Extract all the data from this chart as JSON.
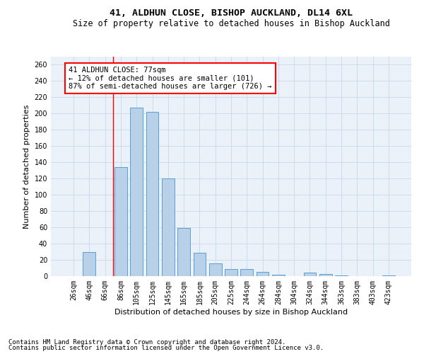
{
  "title1": "41, ALDHUN CLOSE, BISHOP AUCKLAND, DL14 6XL",
  "title2": "Size of property relative to detached houses in Bishop Auckland",
  "xlabel": "Distribution of detached houses by size in Bishop Auckland",
  "ylabel": "Number of detached properties",
  "categories": [
    "26sqm",
    "46sqm",
    "66sqm",
    "86sqm",
    "105sqm",
    "125sqm",
    "145sqm",
    "165sqm",
    "185sqm",
    "205sqm",
    "225sqm",
    "244sqm",
    "264sqm",
    "284sqm",
    "304sqm",
    "324sqm",
    "344sqm",
    "363sqm",
    "383sqm",
    "403sqm",
    "423sqm"
  ],
  "values": [
    0,
    30,
    0,
    134,
    207,
    202,
    120,
    59,
    29,
    16,
    9,
    9,
    5,
    2,
    0,
    4,
    3,
    1,
    0,
    0,
    1
  ],
  "bar_color": "#b8d0e8",
  "bar_edge_color": "#5a9fd4",
  "bar_width": 0.8,
  "vline_x": 2.5,
  "annotation_text": "41 ALDHUN CLOSE: 77sqm\n← 12% of detached houses are smaller (101)\n87% of semi-detached houses are larger (726) →",
  "annotation_box_color": "white",
  "annotation_box_edge_color": "red",
  "ylim": [
    0,
    270
  ],
  "yticks": [
    0,
    20,
    40,
    60,
    80,
    100,
    120,
    140,
    160,
    180,
    200,
    220,
    240,
    260
  ],
  "grid_color": "#c8d8ea",
  "bg_color": "#eaf1f8",
  "footer1": "Contains HM Land Registry data © Crown copyright and database right 2024.",
  "footer2": "Contains public sector information licensed under the Open Government Licence v3.0.",
  "title1_fontsize": 9.5,
  "title2_fontsize": 8.5,
  "xlabel_fontsize": 8,
  "ylabel_fontsize": 8,
  "tick_fontsize": 7,
  "annotation_fontsize": 7.5,
  "footer_fontsize": 6.5
}
